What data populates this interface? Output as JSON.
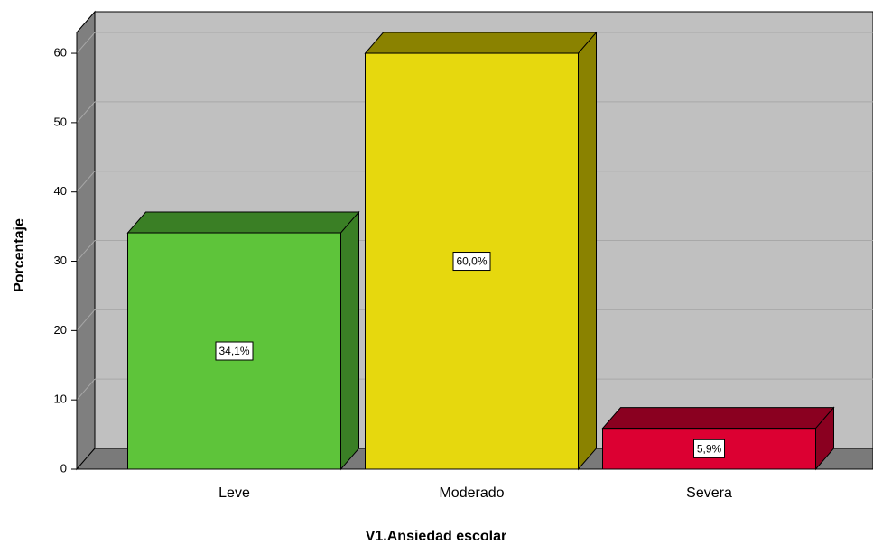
{
  "chart_data": {
    "type": "bar",
    "x_label": "V1.Ansiedad escolar",
    "y_label": "Porcentaje",
    "categories": [
      "Leve",
      "Moderado",
      "Severa"
    ],
    "values": [
      34.1,
      60.0,
      5.9
    ],
    "value_labels": [
      "34,1%",
      "60,0%",
      "5,9%"
    ],
    "colors": [
      "#5ec43a",
      "#e6d80e",
      "#dc0032"
    ],
    "shade_colors": [
      "#3a7f25",
      "#8a8200",
      "#8a0020"
    ],
    "ylim": [
      0,
      63
    ],
    "yticks": [
      0,
      10,
      20,
      30,
      40,
      50,
      60
    ],
    "grid": true
  }
}
